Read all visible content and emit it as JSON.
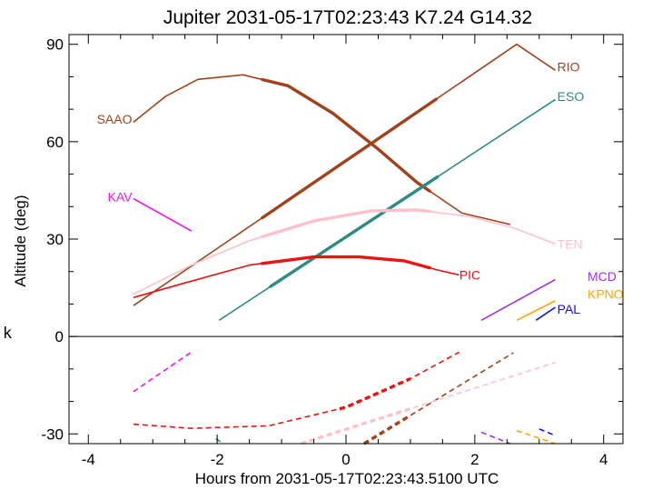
{
  "chart_data": {
    "type": "line",
    "title": "Jupiter 2031-05-17T02:23:43  K7.24  G14.32",
    "xlabel": "Hours from 2031-05-17T02:23:43.5100 UTC",
    "ylabel": "Altitude (deg)",
    "side_note": "k",
    "xlim": [
      -4.3,
      4.3
    ],
    "ylim": [
      -33,
      93
    ],
    "xticks": [
      -4,
      -2,
      0,
      2,
      4
    ],
    "yticks": [
      90,
      60,
      30,
      0,
      -30
    ],
    "grid": false,
    "zero_line": true,
    "series": [
      {
        "name": "SAAO",
        "color": "#a0421a",
        "label_anchor": "end",
        "label_x": -3.32,
        "label_y": 67,
        "altitude": [
          [
            -3.3,
            66
          ],
          [
            -2.8,
            74
          ],
          [
            -2.3,
            79.2
          ],
          [
            -1.6,
            80.6
          ],
          [
            -0.9,
            77.2
          ],
          [
            -0.2,
            68.7
          ],
          [
            0.5,
            57.7
          ],
          [
            1.1,
            47.5
          ],
          [
            1.8,
            38
          ],
          [
            2.55,
            34.5
          ]
        ],
        "bold_range": [
          -1.3,
          1.3
        ],
        "lower": [
          [
            0.28,
            -33
          ],
          [
            2.6,
            -5
          ]
        ],
        "lower_bold_range": [
          0.28,
          1.0
        ]
      },
      {
        "name": "RIO",
        "color": "#a0421a",
        "label_anchor": "start",
        "label_x": 3.28,
        "label_y": 83,
        "altitude": [
          [
            -3.3,
            9.5
          ],
          [
            2.65,
            90
          ],
          [
            3.25,
            82
          ]
        ],
        "bold_range": [
          -1.3,
          1.4
        ]
      },
      {
        "name": "ESO",
        "color": "#2e8b84",
        "label_anchor": "start",
        "label_x": 3.28,
        "label_y": 74,
        "altitude": [
          [
            -1.97,
            5
          ],
          [
            3.25,
            73
          ]
        ],
        "bold_range": [
          -1.17,
          1.42
        ],
        "lower": [
          [
            -2.02,
            -31.5
          ],
          [
            -1.9,
            -33
          ]
        ]
      },
      {
        "name": "TEN",
        "color": "#ffc0cb",
        "label_anchor": "start",
        "label_x": 3.28,
        "label_y": 28.5,
        "altitude": [
          [
            -3.3,
            13
          ],
          [
            -2.4,
            22
          ],
          [
            -1.5,
            29.5
          ],
          [
            -0.5,
            35.6
          ],
          [
            0.4,
            38.7
          ],
          [
            1.1,
            39
          ],
          [
            1.9,
            37
          ],
          [
            2.6,
            33.5
          ],
          [
            3.25,
            28.5
          ]
        ],
        "bold_range": [
          -1.3,
          1.3
        ],
        "lower": [
          [
            -0.7,
            -33
          ],
          [
            3.25,
            -8
          ]
        ],
        "lower_bold_range": [
          -0.7,
          1.0
        ]
      },
      {
        "name": "PIC",
        "color": "#ee1111",
        "label_anchor": "start",
        "label_x": 1.76,
        "label_y": 19,
        "altitude": [
          [
            -3.3,
            12
          ],
          [
            -2.5,
            16.5
          ],
          [
            -1.5,
            22
          ],
          [
            -0.5,
            24.5
          ],
          [
            0.2,
            24.5
          ],
          [
            0.9,
            23.3
          ],
          [
            1.4,
            20.6
          ],
          [
            1.75,
            19
          ]
        ],
        "bold_range": [
          -1.3,
          1.3
        ],
        "lower": [
          [
            -3.3,
            -27
          ],
          [
            -2.4,
            -28.3
          ],
          [
            -1.2,
            -27.5
          ],
          [
            0,
            -21.8
          ],
          [
            1.0,
            -13
          ],
          [
            1.76,
            -4.8
          ]
        ],
        "lower_bold_range": [
          -0.1,
          1.0
        ]
      },
      {
        "name": "KAV",
        "color": "#ee11ee",
        "label_anchor": "end",
        "label_x": -3.32,
        "label_y": 43,
        "altitude": [
          [
            -3.3,
            42.5
          ],
          [
            -2.4,
            32.5
          ]
        ],
        "lower": [
          [
            -3.3,
            -17
          ],
          [
            -2.4,
            -4.8
          ]
        ]
      },
      {
        "name": "MCD",
        "color": "#a030e0",
        "label_anchor": "start",
        "label_x": 3.75,
        "label_y": 18.5,
        "altitude": [
          [
            2.1,
            5
          ],
          [
            3.25,
            17.5
          ]
        ],
        "lower": [
          [
            2.1,
            -29.5
          ],
          [
            2.55,
            -33
          ]
        ]
      },
      {
        "name": "KPNO",
        "color": "#ffa500",
        "label_anchor": "start",
        "label_x": 3.75,
        "label_y": 13,
        "altitude": [
          [
            2.65,
            5
          ],
          [
            3.25,
            11
          ]
        ],
        "lower": [
          [
            2.65,
            -29
          ],
          [
            3.25,
            -33
          ]
        ]
      },
      {
        "name": "PAL",
        "color": "#1010e0",
        "label_anchor": "start",
        "label_x": 3.28,
        "label_y": 8.5,
        "altitude": [
          [
            2.95,
            5
          ],
          [
            3.25,
            9
          ]
        ],
        "lower": [
          [
            3.0,
            -28.5
          ],
          [
            3.25,
            -30.5
          ]
        ]
      }
    ]
  }
}
